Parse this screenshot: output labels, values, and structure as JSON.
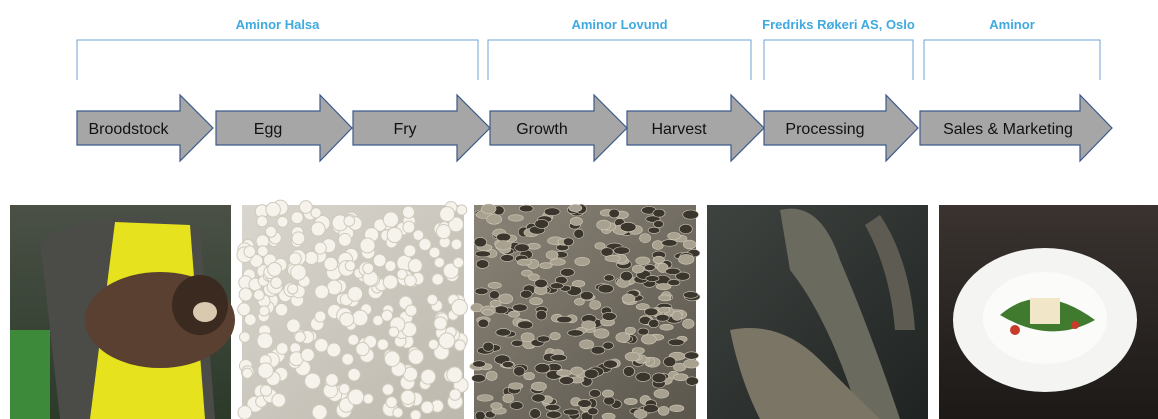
{
  "groups": [
    {
      "label": "Aminor Halsa"
    },
    {
      "label": "Aminor Lovund"
    },
    {
      "label": "Fredriks Røkeri AS, Oslo"
    },
    {
      "label": "Aminor"
    }
  ],
  "stages": [
    "Broodstock",
    "Egg",
    "Fry",
    "Growth",
    "Harvest",
    "Processing",
    "Sales & Marketing"
  ]
}
